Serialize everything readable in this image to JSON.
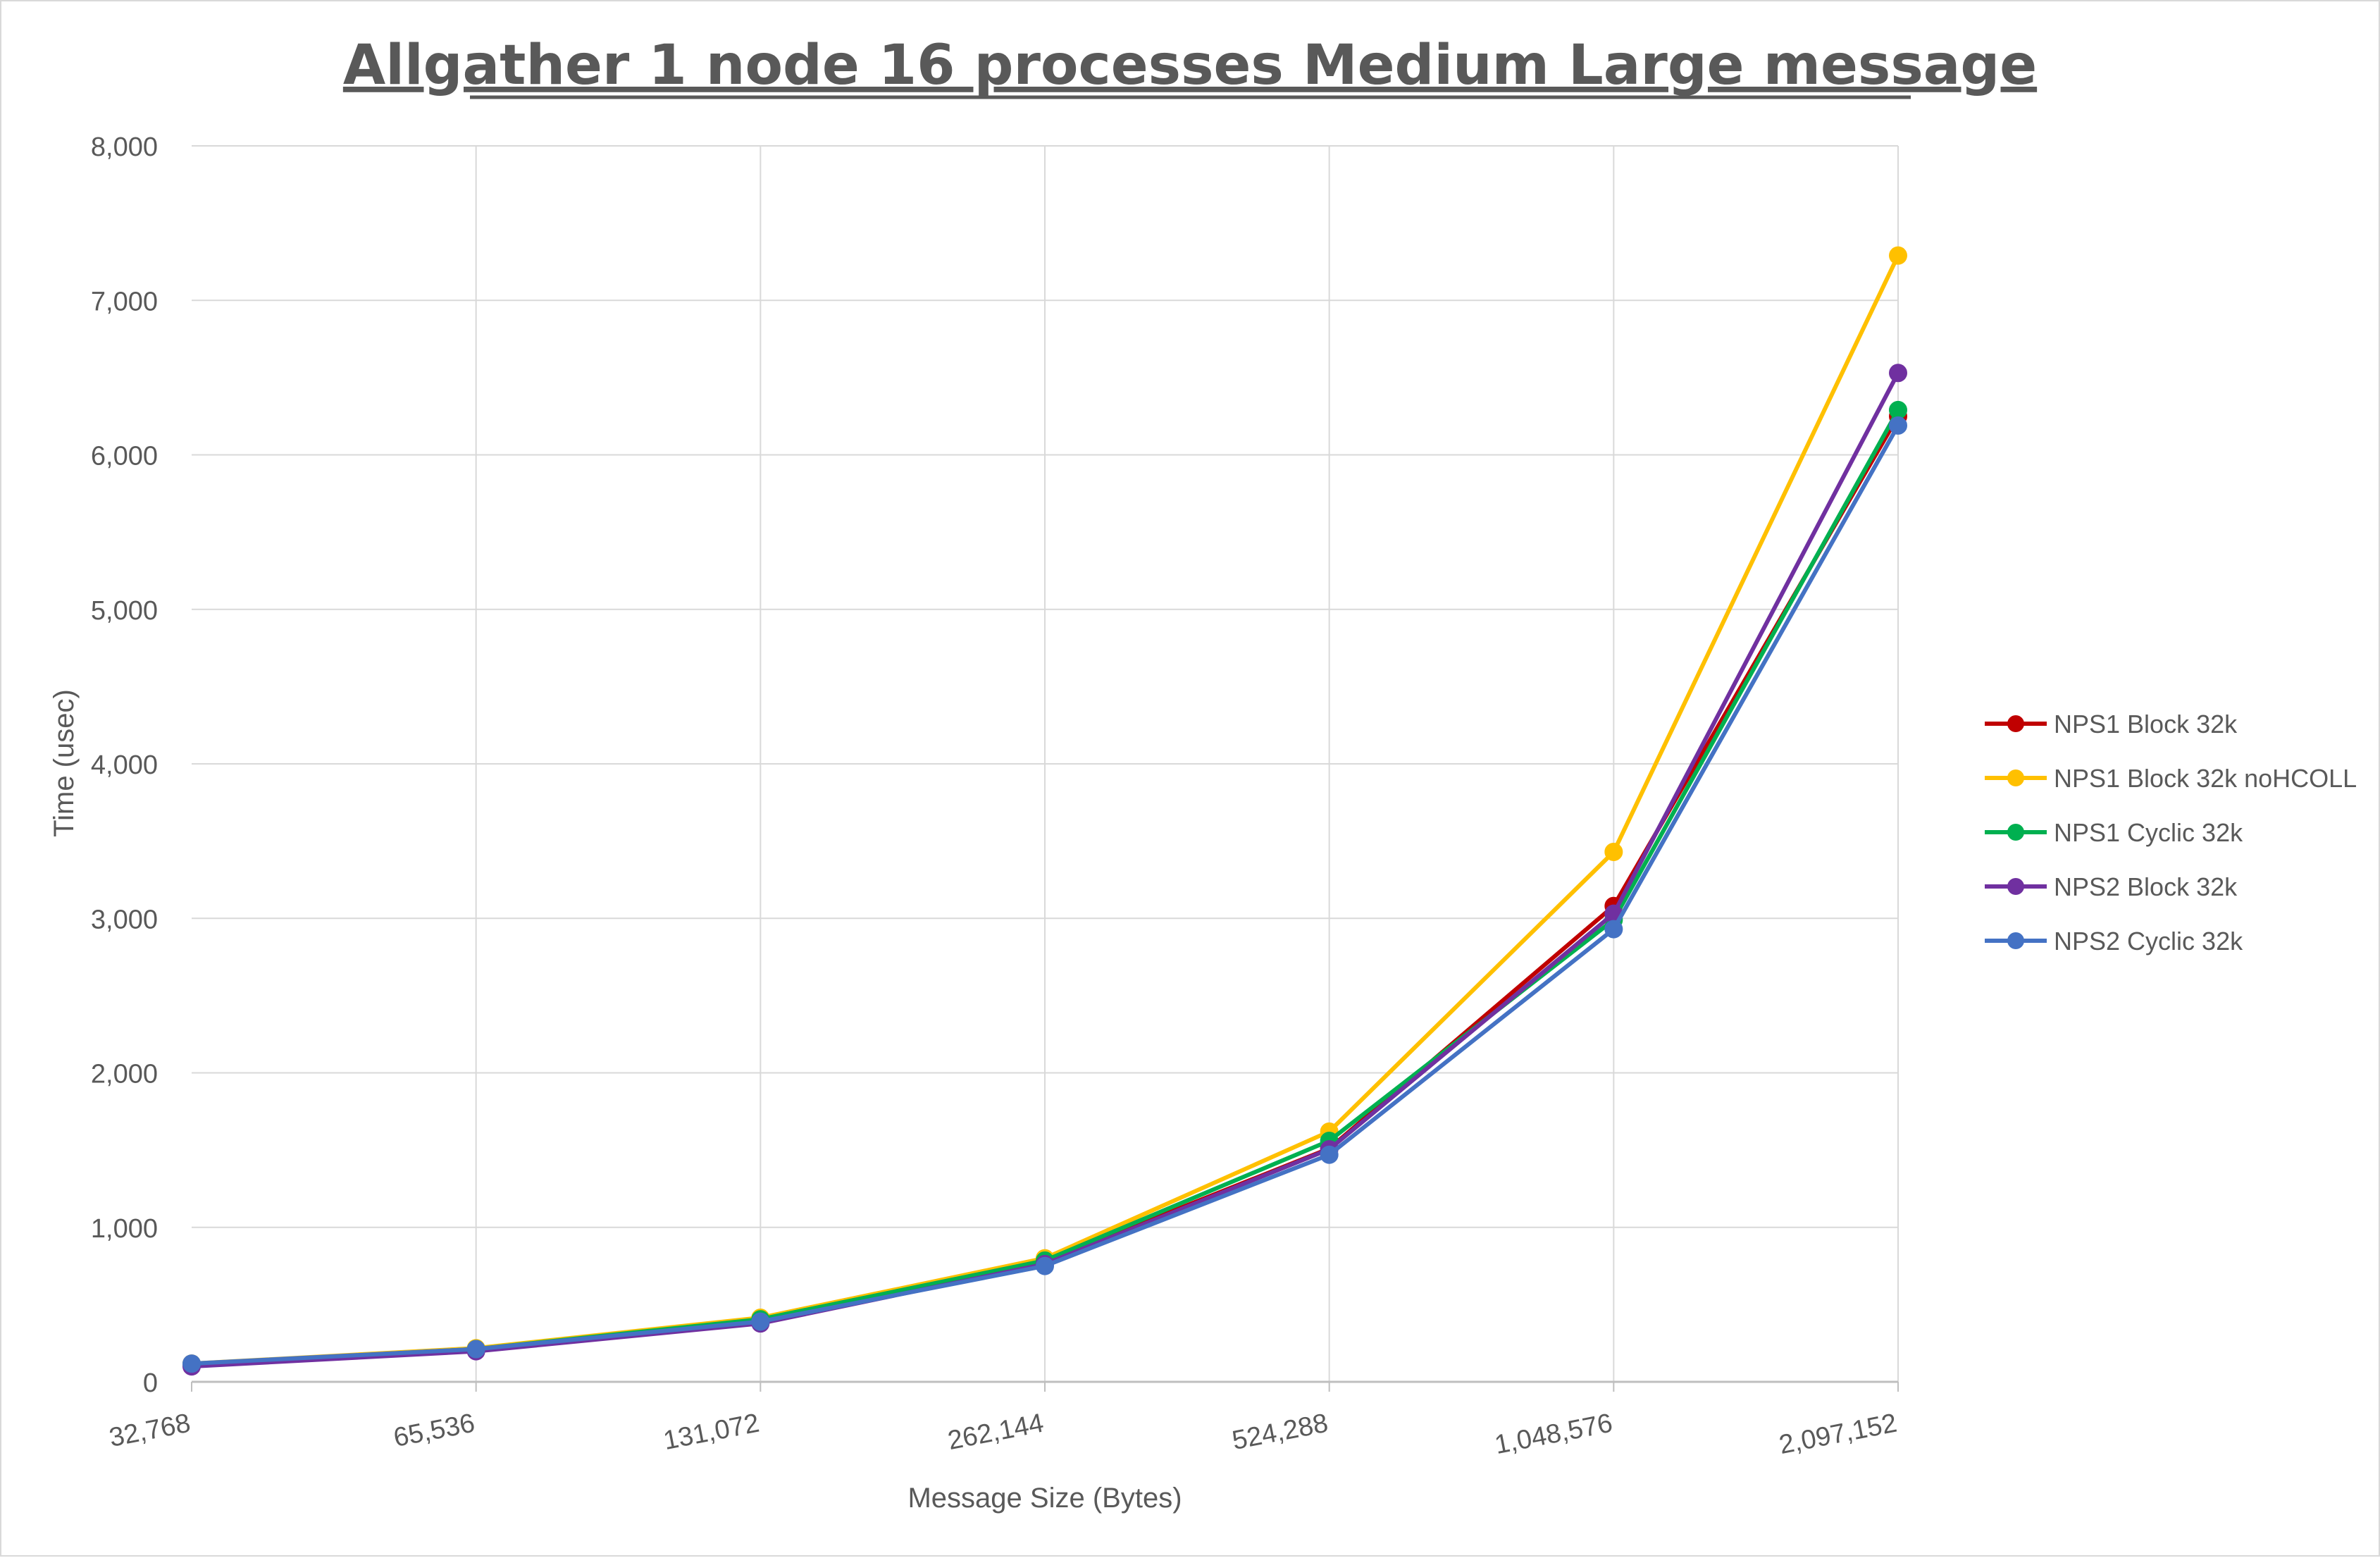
{
  "chart_data": {
    "type": "line",
    "title": "Allgather 1 node 16 processes Medium Large message",
    "xlabel": "Message Size (Bytes)",
    "ylabel": "Time (usec)",
    "categories": [
      "32,768",
      "65,536",
      "131,072",
      "262,144",
      "524,288",
      "1,048,576",
      "2,097,152"
    ],
    "ylim": [
      0,
      8000
    ],
    "yticks": [
      "0",
      "1,000",
      "2,000",
      "3,000",
      "4,000",
      "5,000",
      "6,000",
      "7,000",
      "8,000"
    ],
    "ytick_values": [
      0,
      1000,
      2000,
      3000,
      4000,
      5000,
      6000,
      7000,
      8000
    ],
    "grid": true,
    "legend_position": "right",
    "series": [
      {
        "name": "NPS1 Block 32k",
        "color": "#c00000",
        "values": [
          108,
          205,
          390,
          775,
          1510,
          3080,
          6250
        ]
      },
      {
        "name": "NPS1 Block 32k noHCOLL",
        "color": "#ffc000",
        "values": [
          118,
          218,
          415,
          800,
          1620,
          3430,
          7290
        ]
      },
      {
        "name": "NPS1 Cyclic 32k",
        "color": "#00b050",
        "values": [
          115,
          212,
          405,
          785,
          1560,
          2990,
          6290
        ]
      },
      {
        "name": "NPS2 Block 32k",
        "color": "#7030a0",
        "values": [
          100,
          198,
          378,
          762,
          1505,
          3030,
          6530
        ]
      },
      {
        "name": "NPS2 Cyclic 32k",
        "color": "#4472c4",
        "values": [
          118,
          212,
          390,
          750,
          1470,
          2930,
          6190
        ]
      }
    ]
  }
}
